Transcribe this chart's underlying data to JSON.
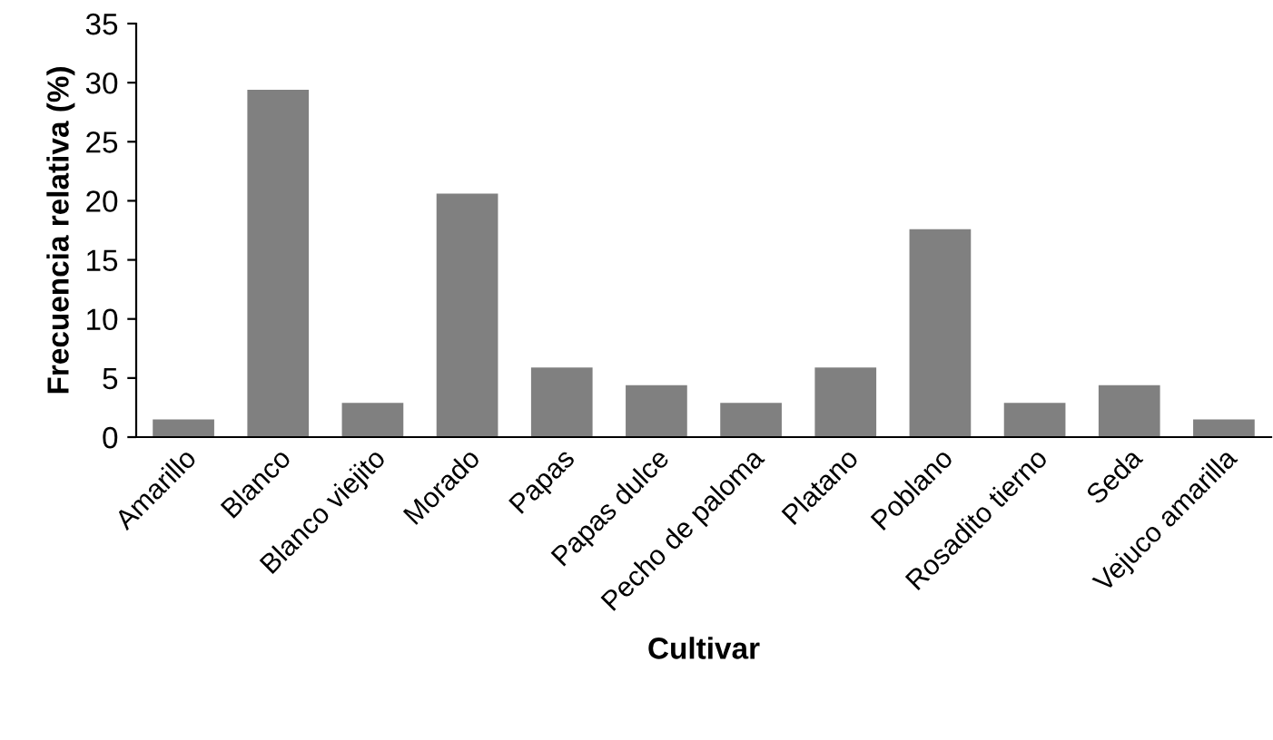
{
  "chart_data": {
    "type": "bar",
    "xlabel": "Cultivar",
    "ylabel": "Frecuencia relativa (%)",
    "categories": [
      "Amarillo",
      "Blanco",
      "Blanco viejito",
      "Morado",
      "Papas",
      "Papas dulce",
      "Pecho de paloma",
      "Platano",
      "Poblano",
      "Rosadito tierno",
      "Seda",
      "Vejuco amarilla"
    ],
    "values": [
      1.5,
      29.4,
      2.9,
      20.6,
      5.9,
      4.4,
      2.9,
      5.9,
      17.6,
      2.9,
      4.4,
      1.5
    ],
    "color": "#808080",
    "ylim": [
      0,
      35
    ],
    "yticks": [
      0,
      5,
      10,
      15,
      20,
      25,
      30,
      35
    ],
    "grid": false
  }
}
